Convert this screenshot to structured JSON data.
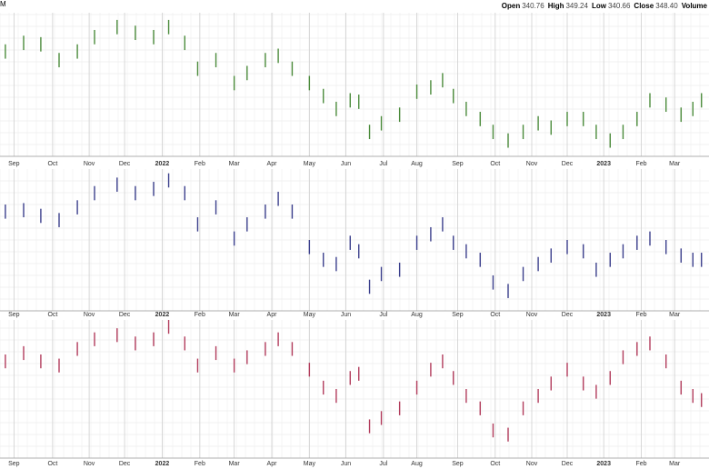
{
  "header": {
    "mark": "M",
    "items": [
      {
        "label": "Open",
        "value": "340.76"
      },
      {
        "label": "High",
        "value": "349.24"
      },
      {
        "label": "Low",
        "value": "340.66"
      },
      {
        "label": "Close",
        "value": "348.40"
      },
      {
        "label": "Volume"
      }
    ]
  },
  "chart_data": [
    {
      "type": "range_bar",
      "color": "#4b8b3b",
      "grid": true,
      "x": [
        0,
        1.7,
        3.3,
        5,
        6.7,
        8.3,
        10.4,
        12.1,
        13.8,
        15.2,
        16.7,
        17.9,
        19.6,
        21.3,
        22.5,
        24.2,
        25.4,
        26.7,
        28.3,
        29.6,
        30.8,
        32.1,
        32.9,
        33.9,
        35,
        36.7,
        38.3,
        39.6,
        40.7,
        41.7,
        42.9,
        44.2,
        45.4,
        46.8,
        48.2,
        49.6,
        50.8,
        52.3,
        53.8,
        55,
        56.3,
        57.5,
        58.8,
        60,
        61.5,
        62.9,
        64,
        64.8
      ],
      "high": [
        78,
        84,
        83,
        72,
        78,
        88,
        95,
        91,
        88,
        95,
        84,
        66,
        72,
        56,
        63,
        72,
        75,
        66,
        56,
        47,
        38,
        44,
        43,
        22,
        28,
        34,
        50,
        53,
        58,
        47,
        38,
        31,
        22,
        16,
        22,
        28,
        25,
        31,
        31,
        22,
        16,
        22,
        31,
        44,
        41,
        34,
        38,
        44
      ],
      "low": [
        68,
        74,
        73,
        62,
        68,
        78,
        85,
        81,
        78,
        85,
        74,
        56,
        62,
        46,
        53,
        62,
        65,
        56,
        46,
        37,
        28,
        34,
        33,
        12,
        18,
        24,
        40,
        43,
        48,
        37,
        28,
        21,
        12,
        6,
        12,
        18,
        15,
        21,
        21,
        12,
        6,
        12,
        21,
        34,
        31,
        24,
        28,
        34
      ],
      "xlim": [
        -0.5,
        65.5
      ],
      "ylim": [
        0,
        100
      ],
      "xticks": [
        {
          "value": 0.8,
          "label": "Sep"
        },
        {
          "value": 4.4,
          "label": "Oct"
        },
        {
          "value": 7.8,
          "label": "Nov"
        },
        {
          "value": 11.1,
          "label": "Dec"
        },
        {
          "value": 14.6,
          "label": "2022"
        },
        {
          "value": 18.1,
          "label": "Feb"
        },
        {
          "value": 21.3,
          "label": "Mar"
        },
        {
          "value": 24.8,
          "label": "Apr"
        },
        {
          "value": 28.3,
          "label": "May"
        },
        {
          "value": 31.7,
          "label": "Jun"
        },
        {
          "value": 35.2,
          "label": "Jul"
        },
        {
          "value": 38.3,
          "label": "Aug"
        },
        {
          "value": 42.1,
          "label": "Sep"
        },
        {
          "value": 45.6,
          "label": "Oct"
        },
        {
          "value": 49,
          "label": "Nov"
        },
        {
          "value": 52.3,
          "label": "Dec"
        },
        {
          "value": 55.7,
          "label": "2023"
        },
        {
          "value": 59.2,
          "label": "Feb"
        },
        {
          "value": 62.3,
          "label": "Mar"
        }
      ]
    },
    {
      "type": "range_bar",
      "color": "#3b3f8c",
      "grid": true,
      "x": [
        0,
        1.7,
        3.3,
        5,
        6.7,
        8.3,
        10.4,
        12.1,
        13.8,
        15.2,
        16.7,
        17.9,
        19.6,
        21.3,
        22.5,
        24.2,
        25.4,
        26.7,
        28.3,
        29.6,
        30.8,
        32.1,
        32.9,
        33.9,
        35,
        36.7,
        38.3,
        39.6,
        40.7,
        41.7,
        42.9,
        44.2,
        45.4,
        46.8,
        48.2,
        49.6,
        50.8,
        52.3,
        53.8,
        55,
        56.3,
        57.5,
        58.8,
        60,
        61.5,
        62.9,
        64,
        64.8
      ],
      "high": [
        75,
        76,
        72,
        69,
        78,
        88,
        94,
        88,
        91,
        97,
        88,
        66,
        78,
        56,
        66,
        75,
        84,
        75,
        50,
        41,
        38,
        53,
        47,
        22,
        31,
        34,
        53,
        59,
        66,
        53,
        47,
        41,
        25,
        19,
        31,
        38,
        44,
        50,
        47,
        34,
        41,
        47,
        53,
        56,
        50,
        44,
        41,
        41
      ],
      "low": [
        65,
        66,
        62,
        59,
        68,
        78,
        84,
        78,
        81,
        87,
        78,
        56,
        68,
        46,
        56,
        65,
        74,
        65,
        40,
        31,
        28,
        43,
        37,
        12,
        21,
        24,
        43,
        49,
        56,
        43,
        37,
        31,
        15,
        9,
        21,
        28,
        34,
        40,
        37,
        24,
        31,
        37,
        43,
        46,
        40,
        34,
        31,
        31
      ],
      "xlim": [
        -0.5,
        65.5
      ],
      "ylim": [
        0,
        100
      ],
      "xticks": [
        {
          "value": 0.8,
          "label": "Sep"
        },
        {
          "value": 4.4,
          "label": "Oct"
        },
        {
          "value": 7.8,
          "label": "Nov"
        },
        {
          "value": 11.1,
          "label": "Dec"
        },
        {
          "value": 14.6,
          "label": "2022"
        },
        {
          "value": 18.1,
          "label": "Feb"
        },
        {
          "value": 21.3,
          "label": "Mar"
        },
        {
          "value": 24.8,
          "label": "Apr"
        },
        {
          "value": 28.3,
          "label": "May"
        },
        {
          "value": 31.7,
          "label": "Jun"
        },
        {
          "value": 35.2,
          "label": "Jul"
        },
        {
          "value": 38.3,
          "label": "Aug"
        },
        {
          "value": 42.1,
          "label": "Sep"
        },
        {
          "value": 45.6,
          "label": "Oct"
        },
        {
          "value": 49,
          "label": "Nov"
        },
        {
          "value": 52.3,
          "label": "Dec"
        },
        {
          "value": 55.7,
          "label": "2023"
        },
        {
          "value": 59.2,
          "label": "Feb"
        },
        {
          "value": 62.3,
          "label": "Mar"
        }
      ]
    },
    {
      "type": "range_bar",
      "color": "#b23c5c",
      "grid": true,
      "x": [
        0,
        1.7,
        3.3,
        5,
        6.7,
        8.3,
        10.4,
        12.1,
        13.8,
        15.2,
        16.7,
        17.9,
        19.6,
        21.3,
        22.5,
        24.2,
        25.4,
        26.7,
        28.3,
        29.6,
        30.8,
        32.1,
        32.9,
        33.9,
        35,
        36.7,
        38.3,
        39.6,
        40.7,
        41.7,
        42.9,
        44.2,
        45.4,
        46.8,
        48.2,
        49.6,
        50.8,
        52.3,
        53.8,
        55,
        56.3,
        57.5,
        58.8,
        60,
        61.5,
        62.9,
        64,
        64.8
      ],
      "high": [
        75,
        81,
        75,
        72,
        84,
        91,
        94,
        88,
        91,
        100,
        88,
        72,
        81,
        72,
        78,
        84,
        91,
        84,
        69,
        56,
        50,
        63,
        66,
        28,
        34,
        41,
        56,
        69,
        75,
        63,
        50,
        41,
        25,
        22,
        41,
        50,
        59,
        69,
        59,
        53,
        63,
        78,
        84,
        88,
        75,
        56,
        50,
        47
      ],
      "low": [
        65,
        71,
        65,
        62,
        74,
        81,
        84,
        78,
        81,
        90,
        78,
        62,
        71,
        62,
        68,
        74,
        81,
        74,
        59,
        46,
        40,
        53,
        56,
        18,
        24,
        31,
        46,
        59,
        65,
        53,
        40,
        31,
        15,
        12,
        31,
        40,
        49,
        59,
        49,
        43,
        53,
        68,
        74,
        78,
        65,
        46,
        40,
        37
      ],
      "xlim": [
        -0.5,
        65.5
      ],
      "ylim": [
        0,
        100
      ],
      "xticks": [
        {
          "value": 0.8,
          "label": "Sep"
        },
        {
          "value": 4.4,
          "label": "Oct"
        },
        {
          "value": 7.8,
          "label": "Nov"
        },
        {
          "value": 11.1,
          "label": "Dec"
        },
        {
          "value": 14.6,
          "label": "2022"
        },
        {
          "value": 18.1,
          "label": "Feb"
        },
        {
          "value": 21.3,
          "label": "Mar"
        },
        {
          "value": 24.8,
          "label": "Apr"
        },
        {
          "value": 28.3,
          "label": "May"
        },
        {
          "value": 31.7,
          "label": "Jun"
        },
        {
          "value": 35.2,
          "label": "Jul"
        },
        {
          "value": 38.3,
          "label": "Aug"
        },
        {
          "value": 42.1,
          "label": "Sep"
        },
        {
          "value": 45.6,
          "label": "Oct"
        },
        {
          "value": 49,
          "label": "Nov"
        },
        {
          "value": 52.3,
          "label": "Dec"
        },
        {
          "value": 55.7,
          "label": "2023"
        },
        {
          "value": 59.2,
          "label": "Feb"
        },
        {
          "value": 62.3,
          "label": "Mar"
        }
      ]
    }
  ]
}
